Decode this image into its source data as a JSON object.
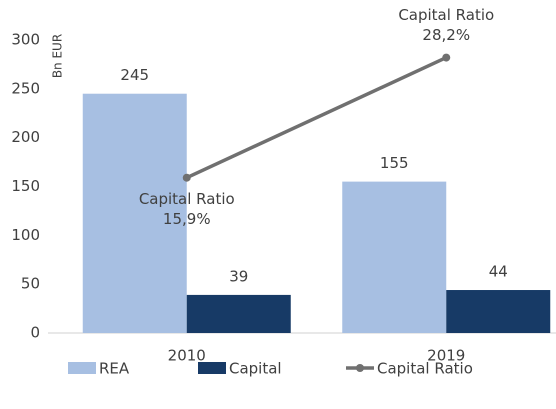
{
  "chart_data": {
    "type": "bar",
    "y_axis_label": "Bn EUR",
    "categories": [
      "2010",
      "2019"
    ],
    "series": [
      {
        "name": "REA",
        "color": "#a7bfe2",
        "values": [
          245,
          155
        ]
      },
      {
        "name": "Capital",
        "color": "#173a66",
        "values": [
          39,
          44
        ]
      },
      {
        "name": "Capital Ratio",
        "color": "#707070",
        "type": "line",
        "axis": "y2",
        "values": [
          15.9,
          28.2
        ],
        "value_labels": [
          "15,9%",
          "28,2%"
        ]
      }
    ],
    "ylim": [
      0,
      300
    ],
    "yticks": [
      0,
      50,
      100,
      150,
      200,
      250,
      300
    ],
    "y2lim": [
      0,
      30
    ],
    "legend": "bottom"
  }
}
